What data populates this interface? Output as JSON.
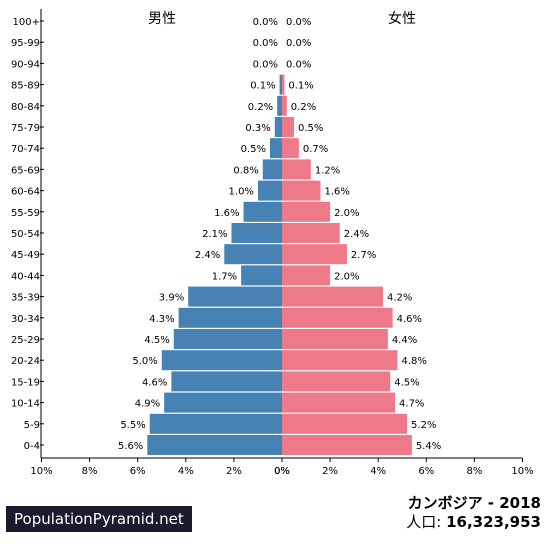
{
  "chart_data": {
    "type": "bar",
    "orientation": "horizontal",
    "title": "カンボジア - 2018",
    "population_label": "人口:",
    "population_value": "16,323,953",
    "categories": [
      "100+",
      "95-99",
      "90-94",
      "85-89",
      "80-84",
      "75-79",
      "70-74",
      "65-69",
      "60-64",
      "55-59",
      "50-54",
      "45-49",
      "40-44",
      "35-39",
      "30-34",
      "25-29",
      "20-24",
      "15-19",
      "10-14",
      "5-9",
      "0-4"
    ],
    "series": [
      {
        "name": "男性",
        "color": "#4682b4",
        "values": [
          0.0,
          0.0,
          0.0,
          0.1,
          0.2,
          0.3,
          0.5,
          0.8,
          1.0,
          1.6,
          2.1,
          2.4,
          1.7,
          3.9,
          4.3,
          4.5,
          5.0,
          4.6,
          4.9,
          5.5,
          5.6
        ],
        "labels": [
          "0.0%",
          "0.0%",
          "0.0%",
          "0.1%",
          "0.2%",
          "0.3%",
          "0.5%",
          "0.8%",
          "1.0%",
          "1.6%",
          "2.1%",
          "2.4%",
          "1.7%",
          "3.9%",
          "4.3%",
          "4.5%",
          "5.0%",
          "4.6%",
          "4.9%",
          "5.5%",
          "5.6%"
        ]
      },
      {
        "name": "女性",
        "color": "#ee7989",
        "values": [
          0.0,
          0.0,
          0.0,
          0.1,
          0.2,
          0.5,
          0.7,
          1.2,
          1.6,
          2.0,
          2.4,
          2.7,
          2.0,
          4.2,
          4.6,
          4.4,
          4.8,
          4.5,
          4.7,
          5.2,
          5.4
        ],
        "labels": [
          "0.0%",
          "0.0%",
          "0.0%",
          "0.1%",
          "0.2%",
          "0.5%",
          "0.7%",
          "1.2%",
          "1.6%",
          "2.0%",
          "2.4%",
          "2.7%",
          "2.0%",
          "4.2%",
          "4.6%",
          "4.4%",
          "4.8%",
          "4.5%",
          "4.7%",
          "5.2%",
          "5.4%"
        ]
      }
    ],
    "x_ticks_left": [
      "10%",
      "8%",
      "6%",
      "4%",
      "2%",
      "0%"
    ],
    "x_ticks_right": [
      "0%",
      "2%",
      "4%",
      "6%",
      "8%",
      "10%"
    ],
    "xlim": [
      0,
      10
    ]
  },
  "brand": "PopulationPyramid.net"
}
